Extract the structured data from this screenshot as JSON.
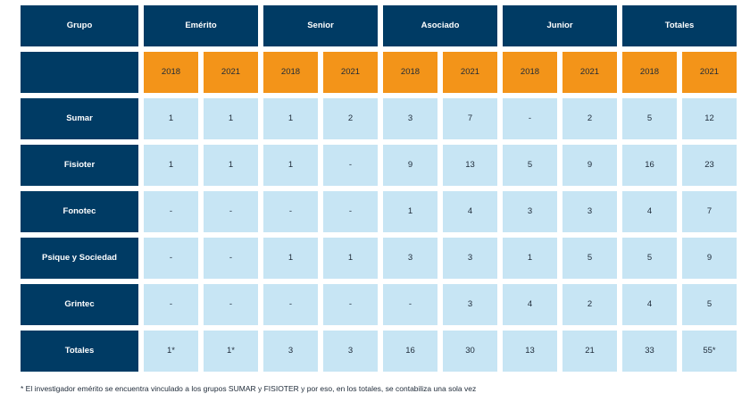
{
  "header": {
    "group_label": "Grupo",
    "categories": [
      "Emérito",
      "Senior",
      "Asociado",
      "Junior",
      "Totales"
    ],
    "years": [
      "2018",
      "2021",
      "2018",
      "2021",
      "2018",
      "2021",
      "2018",
      "2021",
      "2018",
      "2021"
    ]
  },
  "rows": [
    {
      "label": "Sumar",
      "values": [
        "1",
        "1",
        "1",
        "2",
        "3",
        "7",
        "-",
        "2",
        "5",
        "12"
      ]
    },
    {
      "label": "Fisioter",
      "values": [
        "1",
        "1",
        "1",
        "-",
        "9",
        "13",
        "5",
        "9",
        "16",
        "23"
      ]
    },
    {
      "label": "Fonotec",
      "values": [
        "-",
        "-",
        "-",
        "-",
        "1",
        "4",
        "3",
        "3",
        "4",
        "7"
      ]
    },
    {
      "label": "Psique y Sociedad",
      "values": [
        "-",
        "-",
        "1",
        "1",
        "3",
        "3",
        "1",
        "5",
        "5",
        "9"
      ]
    },
    {
      "label": "Grintec",
      "values": [
        "-",
        "-",
        "-",
        "-",
        "-",
        "3",
        "4",
        "2",
        "4",
        "5"
      ]
    },
    {
      "label": "Totales",
      "values": [
        "1*",
        "1*",
        "3",
        "3",
        "16",
        "30",
        "13",
        "21",
        "33",
        "55*"
      ]
    }
  ],
  "footnote": "* El investigador emérito se encuentra vinculado a los grupos SUMAR y FISIOTER y por eso, en los totales, se contabiliza una sola vez",
  "colors": {
    "header_bg": "#003b64",
    "year_bg": "#f39419",
    "cell_bg": "#c7e5f4"
  }
}
